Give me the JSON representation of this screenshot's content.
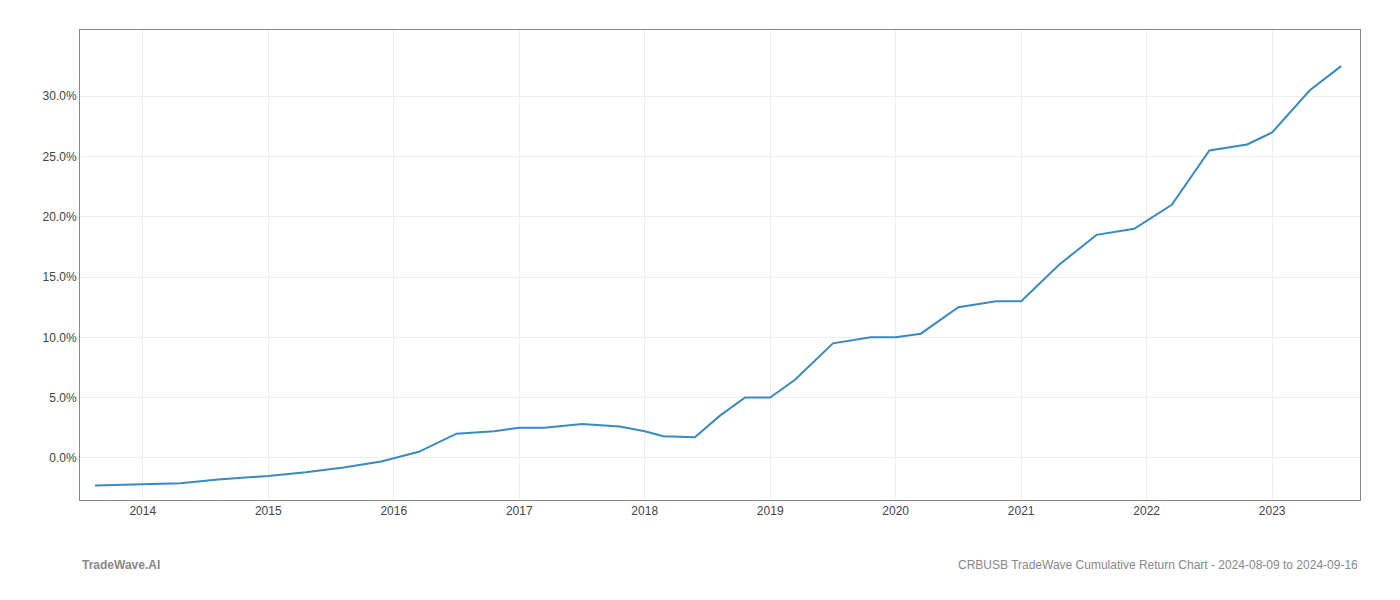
{
  "chart_data": {
    "type": "line",
    "annotations": [
      "TradeWave.AI",
      "CRBUSB TradeWave Cumulative Return Chart - 2024-08-09 to 2024-09-16"
    ],
    "x": [
      2013.62,
      2014.0,
      2014.3,
      2014.6,
      2015.0,
      2015.3,
      2015.6,
      2015.9,
      2016.2,
      2016.5,
      2016.8,
      2017.0,
      2017.2,
      2017.5,
      2017.8,
      2018.0,
      2018.15,
      2018.4,
      2018.6,
      2018.8,
      2019.0,
      2019.2,
      2019.5,
      2019.8,
      2020.0,
      2020.2,
      2020.5,
      2020.8,
      2021.0,
      2021.3,
      2021.6,
      2021.9,
      2022.2,
      2022.5,
      2022.8,
      2023.0,
      2023.3,
      2023.55
    ],
    "values": [
      -2.3,
      -2.2,
      -2.1,
      -1.8,
      -1.5,
      -1.2,
      -0.8,
      -0.3,
      0.5,
      2.0,
      2.2,
      2.5,
      2.5,
      2.8,
      2.6,
      2.2,
      1.8,
      1.7,
      3.5,
      5.0,
      5.0,
      6.5,
      9.5,
      10.0,
      10.0,
      10.3,
      12.5,
      13.0,
      13.0,
      16.0,
      18.5,
      19.0,
      21.0,
      25.5,
      26.0,
      27.0,
      30.5,
      32.5
    ],
    "color": "#3a8abf",
    "xlim": [
      2013.5,
      2023.7
    ],
    "xticks": [
      2014,
      2015,
      2016,
      2017,
      2018,
      2019,
      2020,
      2021,
      2022,
      2023
    ],
    "ylim": [
      -3.5,
      35.5
    ],
    "yticks": [
      {
        "value": 0.0,
        "label": "0.0%"
      },
      {
        "value": 5.0,
        "label": "5.0%"
      },
      {
        "value": 10.0,
        "label": "10.0%"
      },
      {
        "value": 15.0,
        "label": "15.0%"
      },
      {
        "value": 20.0,
        "label": "20.0%"
      },
      {
        "value": 25.0,
        "label": "25.0%"
      },
      {
        "value": 30.0,
        "label": "30.0%"
      }
    ],
    "grid": true
  }
}
